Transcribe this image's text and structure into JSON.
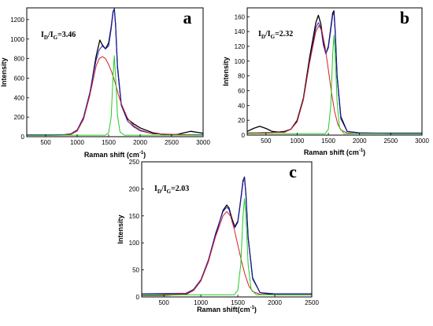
{
  "chart_data": [
    {
      "type": "line",
      "panel_letter": "a",
      "annotation": {
        "main": "I",
        "sub1": "D",
        "mid": "/I",
        "sub2": "G",
        "value": "=3.46"
      },
      "xlabel": {
        "text": "Raman shift (cm",
        "sup": "-1",
        "end": ")"
      },
      "ylabel": "Intensity",
      "xlim": [
        200,
        3000
      ],
      "ylim": [
        0,
        1320
      ],
      "xticks": [
        500,
        1000,
        1500,
        2000,
        2500,
        3000
      ],
      "yticks": [
        0,
        200,
        400,
        600,
        800,
        1000,
        1200
      ],
      "series": [
        {
          "color": "#000000",
          "x": [
            200,
            400,
            600,
            800,
            900,
            1000,
            1100,
            1200,
            1300,
            1360,
            1400,
            1450,
            1500,
            1540,
            1570,
            1590,
            1610,
            1640,
            1700,
            1800,
            1900,
            2000,
            2200,
            2400,
            2500,
            2600,
            2700,
            2800,
            2900,
            3000
          ],
          "y": [
            15,
            15,
            15,
            18,
            25,
            60,
            180,
            430,
            820,
            990,
            940,
            900,
            960,
            1120,
            1280,
            1310,
            1150,
            720,
            330,
            180,
            130,
            90,
            40,
            20,
            15,
            25,
            40,
            55,
            45,
            35
          ]
        },
        {
          "color": "#1f1fbf",
          "x": [
            200,
            600,
            800,
            900,
            1000,
            1100,
            1200,
            1300,
            1350,
            1400,
            1450,
            1500,
            1540,
            1570,
            1590,
            1610,
            1640,
            1700,
            1800,
            1900,
            2000,
            2200,
            2500,
            3000
          ],
          "y": [
            20,
            20,
            22,
            30,
            70,
            200,
            450,
            780,
            890,
            930,
            900,
            930,
            1100,
            1270,
            1310,
            1140,
            700,
            320,
            160,
            100,
            60,
            30,
            22,
            20
          ]
        },
        {
          "color": "#d42020",
          "x": [
            200,
            800,
            900,
            1000,
            1100,
            1200,
            1300,
            1350,
            1400,
            1450,
            1500,
            1550,
            1600,
            1650,
            1700,
            1800,
            1900,
            2000,
            2200,
            3000
          ],
          "y": [
            15,
            18,
            25,
            60,
            180,
            420,
            720,
            800,
            820,
            800,
            740,
            660,
            560,
            440,
            340,
            190,
            110,
            70,
            30,
            15
          ]
        },
        {
          "color": "#22cc22",
          "x": [
            200,
            1450,
            1500,
            1540,
            1570,
            1590,
            1610,
            1640,
            1680,
            1750,
            3000
          ],
          "y": [
            15,
            15,
            40,
            200,
            620,
            830,
            620,
            220,
            50,
            15,
            15
          ]
        }
      ]
    },
    {
      "type": "line",
      "panel_letter": "b",
      "annotation": {
        "main": "I",
        "sub1": "D",
        "mid": "/I",
        "sub2": "G",
        "value": "=2.32"
      },
      "xlabel": {
        "text": "Raman shift (cm",
        "sup": "-1",
        "end": ")"
      },
      "ylabel": "Intensity",
      "xlim": [
        200,
        3000
      ],
      "ylim": [
        0,
        172
      ],
      "xticks": [
        500,
        1000,
        1500,
        2000,
        2500,
        3000
      ],
      "yticks": [
        0,
        20,
        40,
        60,
        80,
        100,
        120,
        140,
        160
      ],
      "series": [
        {
          "color": "#000000",
          "x": [
            200,
            300,
            400,
            500,
            600,
            700,
            800,
            900,
            1000,
            1100,
            1200,
            1300,
            1340,
            1380,
            1420,
            1460,
            1500,
            1540,
            1570,
            1590,
            1610,
            1640,
            1700,
            1800,
            2000,
            2500,
            3000
          ],
          "y": [
            5,
            9,
            12,
            9,
            5,
            4,
            5,
            8,
            20,
            50,
            105,
            152,
            162,
            150,
            125,
            110,
            120,
            145,
            165,
            168,
            140,
            80,
            25,
            5,
            3,
            2,
            2
          ]
        },
        {
          "color": "#1f1fbf",
          "x": [
            200,
            800,
            900,
            1000,
            1100,
            1200,
            1300,
            1340,
            1380,
            1420,
            1460,
            1500,
            1540,
            1570,
            1590,
            1610,
            1640,
            1700,
            1800,
            2000,
            3000
          ],
          "y": [
            3,
            4,
            8,
            18,
            48,
            100,
            145,
            152,
            145,
            122,
            110,
            118,
            142,
            162,
            165,
            138,
            78,
            22,
            5,
            3,
            3
          ]
        },
        {
          "color": "#d42020",
          "x": [
            200,
            800,
            900,
            1000,
            1100,
            1200,
            1300,
            1350,
            1400,
            1450,
            1500,
            1550,
            1600,
            1650,
            1700,
            1800,
            2000,
            3000
          ],
          "y": [
            3,
            4,
            8,
            18,
            48,
            98,
            140,
            148,
            140,
            118,
            88,
            58,
            32,
            15,
            7,
            3,
            2,
            2
          ]
        },
        {
          "color": "#22cc22",
          "x": [
            200,
            1450,
            1500,
            1540,
            1570,
            1590,
            1610,
            1640,
            1680,
            1750,
            3000
          ],
          "y": [
            2,
            2,
            8,
            40,
            110,
            135,
            108,
            45,
            10,
            2,
            2
          ]
        }
      ]
    },
    {
      "type": "line",
      "panel_letter": "c",
      "annotation": {
        "main": "I",
        "sub1": "D",
        "mid": "/I",
        "sub2": "G",
        "value": "=2.03"
      },
      "xlabel": {
        "text": "Raman shift(cm",
        "sup": "-1",
        "end": ")"
      },
      "ylabel": "Intensity",
      "xlim": [
        200,
        2500
      ],
      "ylim": [
        0,
        250
      ],
      "xticks": [
        500,
        1000,
        1500,
        2000,
        2500
      ],
      "yticks": [
        0,
        50,
        100,
        150,
        200,
        250
      ],
      "series": [
        {
          "color": "#000000",
          "x": [
            200,
            500,
            800,
            900,
            1000,
            1100,
            1200,
            1300,
            1350,
            1380,
            1420,
            1460,
            1500,
            1540,
            1570,
            1590,
            1610,
            1640,
            1700,
            1800,
            2000,
            2200,
            2500
          ],
          "y": [
            3,
            3,
            5,
            12,
            30,
            65,
            115,
            160,
            170,
            165,
            145,
            130,
            140,
            180,
            215,
            222,
            190,
            110,
            35,
            8,
            4,
            4,
            4
          ]
        },
        {
          "color": "#1f1fbf",
          "x": [
            200,
            800,
            900,
            1000,
            1100,
            1200,
            1300,
            1350,
            1380,
            1420,
            1460,
            1500,
            1540,
            1570,
            1590,
            1610,
            1640,
            1700,
            1800,
            2000,
            2500
          ],
          "y": [
            6,
            7,
            14,
            32,
            68,
            118,
            158,
            166,
            162,
            142,
            128,
            138,
            178,
            212,
            222,
            188,
            108,
            33,
            8,
            6,
            6
          ]
        },
        {
          "color": "#d42020",
          "x": [
            200,
            800,
            900,
            1000,
            1100,
            1200,
            1300,
            1350,
            1400,
            1450,
            1500,
            1550,
            1600,
            1650,
            1700,
            1800,
            2000,
            2500
          ],
          "y": [
            4,
            6,
            12,
            30,
            65,
            112,
            150,
            158,
            150,
            126,
            96,
            66,
            40,
            20,
            10,
            5,
            4,
            4
          ]
        },
        {
          "color": "#22cc22",
          "x": [
            200,
            1450,
            1500,
            1540,
            1570,
            1590,
            1610,
            1640,
            1680,
            1750,
            2500
          ],
          "y": [
            4,
            4,
            12,
            60,
            150,
            182,
            150,
            60,
            14,
            4,
            4
          ]
        }
      ]
    }
  ]
}
